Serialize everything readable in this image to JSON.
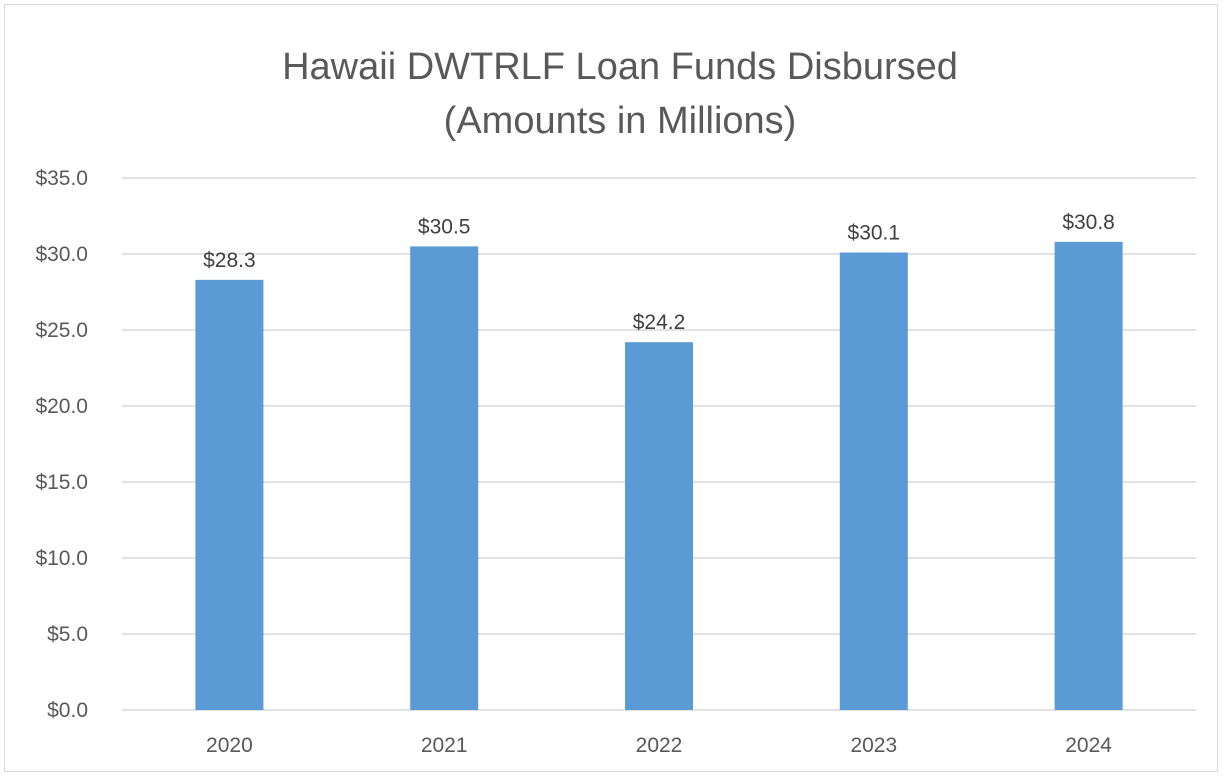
{
  "chart_data": {
    "type": "bar",
    "title": "Hawaii DWTRLF Loan Funds Disbursed",
    "subtitle": "(Amounts in Millions)",
    "categories": [
      "2020",
      "2021",
      "2022",
      "2023",
      "2024"
    ],
    "values": [
      28.3,
      30.5,
      24.2,
      30.1,
      30.8
    ],
    "data_labels": [
      "$28.3",
      "$30.5",
      "$24.2",
      "$30.1",
      "$30.8"
    ],
    "y_ticks": [
      0,
      5,
      10,
      15,
      20,
      25,
      30,
      35
    ],
    "y_tick_labels": [
      "$0.0",
      "$5.0",
      "$10.0",
      "$15.0",
      "$20.0",
      "$25.0",
      "$30.0",
      "$35.0"
    ],
    "ylim": [
      0,
      35
    ],
    "xlabel": "",
    "ylabel": "",
    "grid": true,
    "legend": "none",
    "bar_color": "#5b9bd5",
    "gridline_color": "#d9d9d9",
    "text_color": "#595959"
  }
}
